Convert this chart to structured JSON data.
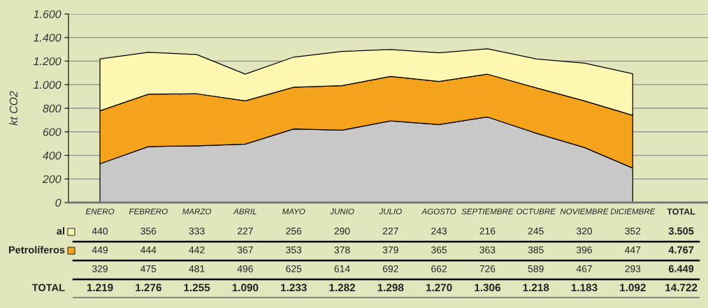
{
  "chart_data": {
    "type": "area",
    "stacked": true,
    "ylabel": "kt CO2",
    "categories": [
      "ENERO",
      "FEBRERO",
      "MARZO",
      "ABRIL",
      "MAYO",
      "JUNIO",
      "JULIO",
      "AGOSTO",
      "SEPTIEMBRE",
      "OCTUBRE",
      "NOVIEMBRE",
      "DICIEMBRE"
    ],
    "series": [
      {
        "color": "#c8c8c8",
        "values": [
          329,
          475,
          481,
          496,
          625,
          614,
          692,
          662,
          726,
          589,
          467,
          293
        ]
      },
      {
        "name": "Petrolíferos",
        "color": "#f5a31d",
        "values": [
          449,
          444,
          442,
          367,
          353,
          378,
          379,
          365,
          363,
          385,
          396,
          447
        ]
      },
      {
        "name": "al",
        "color": "#fef7b2",
        "values": [
          440,
          356,
          333,
          227,
          256,
          290,
          227,
          243,
          216,
          245,
          320,
          352
        ]
      }
    ],
    "ylim": [
      0,
      1600
    ],
    "yticks": [
      0,
      200,
      400,
      600,
      800,
      {
        "value": 1000,
        "label": "1.000"
      },
      {
        "value": 1200,
        "label": "1.200"
      },
      {
        "value": 1400,
        "label": "1.400"
      },
      {
        "value": 1600,
        "label": "1.600"
      }
    ],
    "grid": "y",
    "legend": "left",
    "data_labels": true,
    "annotations": [
      "TOTAL",
      "TOTAL",
      "3.505",
      "4.767",
      "6.449",
      "1.219",
      "1.276",
      "1.255",
      "1.090",
      "1.233",
      "1.282",
      "1.298",
      "1.270",
      "1.306",
      "1.218",
      "1.183",
      "1.092",
      "14.722"
    ]
  }
}
